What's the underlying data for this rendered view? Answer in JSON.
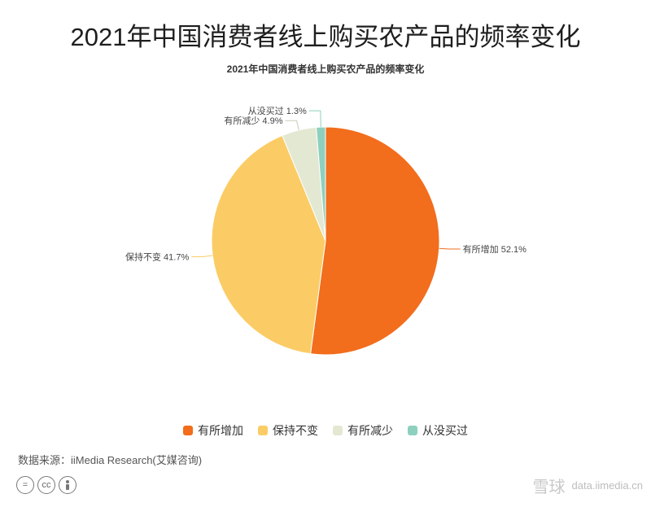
{
  "header": {
    "title": "2021年中国消费者线上购买农产品的频率变化",
    "subtitle": "2021年中国消费者线上购买农产品的频率变化"
  },
  "chart_data": {
    "type": "pie",
    "title": "2021年中国消费者线上购买农产品的频率变化",
    "unit": "%",
    "slices": [
      {
        "label": "有所增加",
        "value": 52.1,
        "color": "#f26d1c"
      },
      {
        "label": "保持不变",
        "value": 41.7,
        "color": "#fbcc65"
      },
      {
        "label": "有所减少",
        "value": 4.9,
        "color": "#e3e8d2"
      },
      {
        "label": "从没买过",
        "value": 1.3,
        "color": "#8ed0be"
      }
    ],
    "legend_position": "bottom"
  },
  "legend": {
    "items": [
      {
        "label": "有所增加",
        "color": "#f26d1c"
      },
      {
        "label": "保持不变",
        "color": "#fbcc65"
      },
      {
        "label": "有所减少",
        "color": "#e3e8d2"
      },
      {
        "label": "从没买过",
        "color": "#8ed0be"
      }
    ]
  },
  "footer": {
    "source": "数据来源：iiMedia Research(艾媒咨询)",
    "cc_icons": [
      "equals-icon",
      "cc-icon",
      "person-icon"
    ]
  },
  "watermark": {
    "text": "雪球",
    "url": "data.iimedia.cn"
  }
}
